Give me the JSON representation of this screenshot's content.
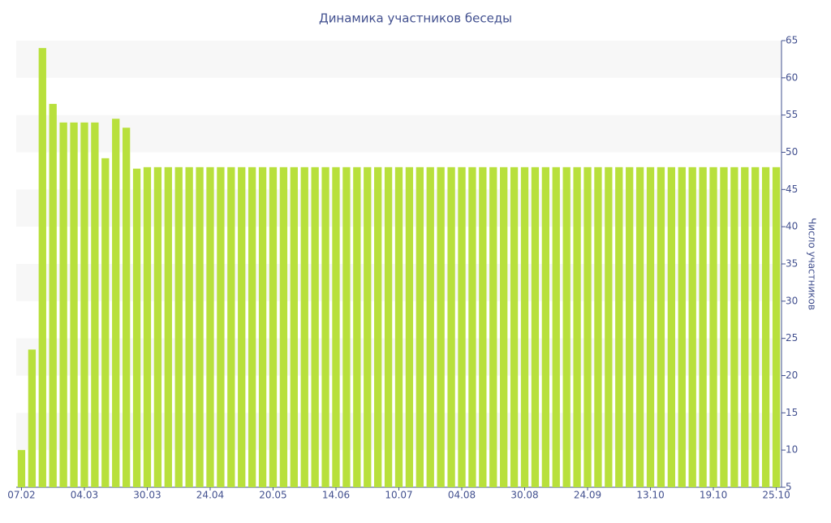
{
  "chart_data": {
    "type": "bar",
    "title": "Динамика участников беседы",
    "y_label": "Число участников",
    "categories": [
      "07.02",
      null,
      null,
      null,
      null,
      null,
      "04.03",
      null,
      null,
      null,
      null,
      null,
      "30.03",
      null,
      null,
      null,
      null,
      null,
      "24.04",
      null,
      null,
      null,
      null,
      null,
      "20.05",
      null,
      null,
      null,
      null,
      null,
      "14.06",
      null,
      null,
      null,
      null,
      null,
      "10.07",
      null,
      null,
      null,
      null,
      null,
      "04.08",
      null,
      null,
      null,
      null,
      null,
      "30.08",
      null,
      null,
      null,
      null,
      null,
      "24.09",
      null,
      null,
      null,
      null,
      null,
      "13.10",
      null,
      null,
      null,
      null,
      null,
      "19.10",
      null,
      null,
      null,
      null,
      null,
      "25.10"
    ],
    "values": [
      10,
      23.5,
      64,
      56.5,
      54,
      54,
      54,
      54,
      49.2,
      54.5,
      53.3,
      47.8,
      48,
      48,
      48,
      48,
      48,
      48,
      48,
      48,
      48,
      48,
      48,
      48,
      48,
      48,
      48,
      48,
      48,
      48,
      48,
      48,
      48,
      48,
      48,
      48,
      48,
      48,
      48,
      48,
      48,
      48,
      48,
      48,
      48,
      48,
      48,
      48,
      48,
      48,
      48,
      48,
      48,
      48,
      48,
      48,
      48,
      48,
      48,
      48,
      48,
      48,
      48,
      48,
      48,
      48,
      48,
      48,
      48,
      48,
      48,
      48,
      48
    ],
    "color": "#b8e03c",
    "ylim": [
      5,
      65
    ],
    "yticks": [
      5,
      10,
      15,
      20,
      25,
      30,
      35,
      40,
      45,
      50,
      55,
      60,
      65
    ],
    "y_axis_side": "right",
    "grid": "bands"
  }
}
